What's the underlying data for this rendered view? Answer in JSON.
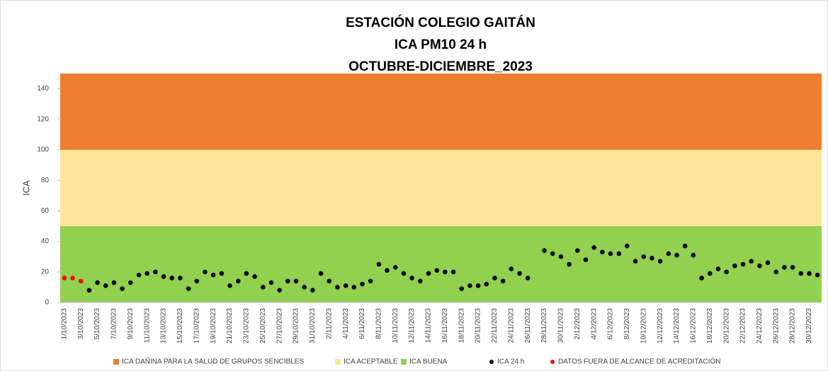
{
  "chart_data": {
    "type": "scatter",
    "title_lines": [
      "ESTACIÓN COLEGIO GAITÁN",
      "ICA PM10 24 h",
      "OCTUBRE-DICIEMBRE_2023"
    ],
    "y_label": "ICA",
    "ylim": [
      0,
      150
    ],
    "yticks": [
      0,
      20,
      40,
      60,
      80,
      100,
      120,
      140
    ],
    "bands": [
      {
        "name": "ICA DAÑINA PARA LA SALUD DE GRUPOS SENCIBLES",
        "color": "#ed7d31",
        "from": 100,
        "to": 150
      },
      {
        "name": "ICA ACEPTABLE",
        "color": "#ffe699",
        "from": 50,
        "to": 100
      },
      {
        "name": "ICA BUENA",
        "color": "#92d050",
        "from": 0,
        "to": 50
      }
    ],
    "categories": [
      "1/10/2023",
      null,
      "3/10/2023",
      null,
      "5/10/2023",
      null,
      "7/10/2023",
      null,
      "9/10/2023",
      null,
      "11/10/2023",
      null,
      "13/10/2023",
      null,
      "15/10/2023",
      null,
      "17/10/2023",
      null,
      "19/10/2023",
      null,
      "21/10/2023",
      null,
      "23/10/2023",
      null,
      "25/10/2023",
      null,
      "27/10/2023",
      null,
      "29/10/2023",
      null,
      "31/10/2023",
      null,
      "2/11/2023",
      null,
      "4/11/2023",
      null,
      "6/11/2023",
      null,
      "8/11/2023",
      null,
      "10/11/2023",
      null,
      "12/11/2023",
      null,
      "14/11/2023",
      null,
      "16/11/2023",
      null,
      "18/11/2023",
      null,
      "20/11/2023",
      null,
      "22/11/2023",
      null,
      "24/11/2023",
      null,
      "26/11/2023",
      null,
      "28/11/2023",
      null,
      "30/11/2023",
      null,
      "2/12/2023",
      null,
      "4/12/2023",
      null,
      "6/12/2023",
      null,
      "8/12/2023",
      null,
      "10/12/2023",
      null,
      "12/12/2023",
      null,
      "14/12/2023",
      null,
      "16/12/2023",
      null,
      "18/12/2023",
      null,
      "20/12/2023",
      null,
      "22/12/2023",
      null,
      "24/12/2023",
      null,
      "26/12/2023",
      null,
      "28/12/2023",
      null,
      "30/12/2023",
      null
    ],
    "series": [
      {
        "name": "ICA 24 h",
        "color": "#000000",
        "values": [
          null,
          null,
          null,
          8,
          13,
          11,
          13,
          9,
          13,
          18,
          19,
          20,
          17,
          16,
          16,
          9,
          14,
          20,
          18,
          19,
          11,
          14,
          19,
          17,
          10,
          13,
          8,
          14,
          14,
          10,
          8,
          19,
          14,
          10,
          11,
          10,
          12,
          14,
          25,
          21,
          23,
          19,
          16,
          14,
          19,
          21,
          20,
          20,
          9,
          11,
          11,
          12,
          16,
          14,
          22,
          19,
          16,
          null,
          34,
          32,
          30,
          25,
          34,
          28,
          36,
          33,
          32,
          32,
          37,
          27,
          30,
          29,
          27,
          32,
          31,
          37,
          31,
          16,
          19,
          22,
          20,
          24,
          25,
          27,
          24,
          26,
          20,
          23,
          23,
          19,
          19,
          18
        ]
      },
      {
        "name": "DATOS FUERA DE ALCANCE DE ACREDITACIÓN",
        "color": "#ff0000",
        "values": [
          16,
          16,
          14,
          null,
          null,
          null,
          null,
          null,
          null,
          null,
          null,
          null,
          null,
          null,
          null,
          null,
          null,
          null,
          null,
          null,
          null,
          null,
          null,
          null,
          null,
          null,
          null,
          null,
          null,
          null,
          null,
          null,
          null,
          null,
          null,
          null,
          null,
          null,
          null,
          null,
          null,
          null,
          null,
          null,
          null,
          null,
          null,
          null,
          null,
          null,
          null,
          null,
          null,
          null,
          null,
          null,
          null,
          null,
          null,
          null,
          null,
          null,
          null,
          null,
          null,
          null,
          null,
          null,
          null,
          null,
          null,
          null,
          null,
          null,
          null,
          null,
          null,
          null,
          null,
          null,
          null,
          null,
          null,
          null,
          null,
          null,
          null,
          null,
          null,
          null,
          null,
          null
        ]
      }
    ]
  }
}
